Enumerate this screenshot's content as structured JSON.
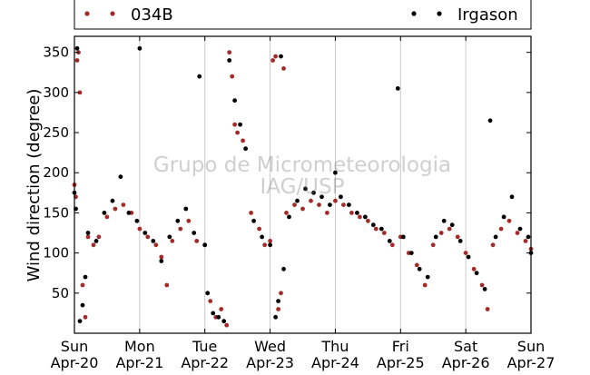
{
  "chart_data": {
    "type": "scatter",
    "ylabel": "Wind direction (degree)",
    "ylim": [
      0,
      370
    ],
    "yticks": [
      50,
      100,
      150,
      200,
      250,
      300,
      350
    ],
    "xlim": [
      "2014-04-20T00:00",
      "2014-04-27T00:00"
    ],
    "xticks": [
      {
        "x": "2014-04-20T00:00",
        "day": "Sun",
        "date": "Apr-20"
      },
      {
        "x": "2014-04-21T00:00",
        "day": "Mon",
        "date": "Apr-21"
      },
      {
        "x": "2014-04-22T00:00",
        "day": "Tue",
        "date": "Apr-22"
      },
      {
        "x": "2014-04-23T00:00",
        "day": "Wed",
        "date": "Apr-23"
      },
      {
        "x": "2014-04-24T00:00",
        "day": "Thu",
        "date": "Apr-24"
      },
      {
        "x": "2014-04-25T00:00",
        "day": "Fri",
        "date": "Apr-25"
      },
      {
        "x": "2014-04-26T00:00",
        "day": "Sat",
        "date": "Apr-26"
      },
      {
        "x": "2014-04-27T00:00",
        "day": "Sun",
        "date": "Apr-27"
      }
    ],
    "grid": "vertical",
    "legend": "top",
    "watermark": [
      "Grupo de Micrometeorologia",
      "IAG/USP"
    ],
    "series": [
      {
        "name": "034B",
        "color": "#a52a2a",
        "points": [
          [
            "2014-04-20T00:00",
            185
          ],
          [
            "2014-04-20T00:30",
            170
          ],
          [
            "2014-04-20T01:00",
            340
          ],
          [
            "2014-04-20T01:30",
            350
          ],
          [
            "2014-04-20T02:00",
            300
          ],
          [
            "2014-04-20T03:00",
            60
          ],
          [
            "2014-04-20T04:00",
            20
          ],
          [
            "2014-04-20T05:00",
            120
          ],
          [
            "2014-04-20T07:00",
            110
          ],
          [
            "2014-04-20T09:00",
            120
          ],
          [
            "2014-04-20T12:00",
            145
          ],
          [
            "2014-04-20T15:00",
            155
          ],
          [
            "2014-04-20T18:00",
            160
          ],
          [
            "2014-04-20T21:00",
            150
          ],
          [
            "2014-04-21T00:00",
            130
          ],
          [
            "2014-04-21T03:00",
            120
          ],
          [
            "2014-04-21T06:00",
            110
          ],
          [
            "2014-04-21T08:00",
            95
          ],
          [
            "2014-04-21T10:00",
            60
          ],
          [
            "2014-04-21T12:00",
            115
          ],
          [
            "2014-04-21T15:00",
            130
          ],
          [
            "2014-04-21T18:00",
            140
          ],
          [
            "2014-04-21T21:00",
            115
          ],
          [
            "2014-04-22T00:00",
            110
          ],
          [
            "2014-04-22T02:00",
            40
          ],
          [
            "2014-04-22T04:00",
            20
          ],
          [
            "2014-04-22T06:00",
            30
          ],
          [
            "2014-04-22T08:00",
            10
          ],
          [
            "2014-04-22T09:00",
            350
          ],
          [
            "2014-04-22T10:00",
            320
          ],
          [
            "2014-04-22T11:00",
            260
          ],
          [
            "2014-04-22T12:00",
            250
          ],
          [
            "2014-04-22T14:00",
            240
          ],
          [
            "2014-04-22T17:00",
            150
          ],
          [
            "2014-04-22T20:00",
            130
          ],
          [
            "2014-04-22T22:00",
            110
          ],
          [
            "2014-04-23T00:00",
            115
          ],
          [
            "2014-04-23T01:00",
            340
          ],
          [
            "2014-04-23T02:00",
            345
          ],
          [
            "2014-04-23T03:00",
            30
          ],
          [
            "2014-04-23T04:00",
            50
          ],
          [
            "2014-04-23T05:00",
            330
          ],
          [
            "2014-04-23T06:00",
            150
          ],
          [
            "2014-04-23T09:00",
            160
          ],
          [
            "2014-04-23T12:00",
            155
          ],
          [
            "2014-04-23T15:00",
            165
          ],
          [
            "2014-04-23T18:00",
            160
          ],
          [
            "2014-04-23T21:00",
            150
          ],
          [
            "2014-04-24T00:00",
            165
          ],
          [
            "2014-04-24T03:00",
            160
          ],
          [
            "2014-04-24T06:00",
            150
          ],
          [
            "2014-04-24T09:00",
            145
          ],
          [
            "2014-04-24T12:00",
            140
          ],
          [
            "2014-04-24T15:00",
            130
          ],
          [
            "2014-04-24T18:00",
            125
          ],
          [
            "2014-04-24T21:00",
            110
          ],
          [
            "2014-04-25T00:00",
            120
          ],
          [
            "2014-04-25T03:00",
            100
          ],
          [
            "2014-04-25T06:00",
            85
          ],
          [
            "2014-04-25T09:00",
            60
          ],
          [
            "2014-04-25T12:00",
            110
          ],
          [
            "2014-04-25T15:00",
            125
          ],
          [
            "2014-04-25T18:00",
            130
          ],
          [
            "2014-04-25T21:00",
            120
          ],
          [
            "2014-04-26T00:00",
            100
          ],
          [
            "2014-04-26T03:00",
            80
          ],
          [
            "2014-04-26T06:00",
            60
          ],
          [
            "2014-04-26T08:00",
            30
          ],
          [
            "2014-04-26T10:00",
            110
          ],
          [
            "2014-04-26T13:00",
            130
          ],
          [
            "2014-04-26T16:00",
            140
          ],
          [
            "2014-04-26T19:00",
            125
          ],
          [
            "2014-04-26T22:00",
            115
          ],
          [
            "2014-04-27T00:00",
            105
          ]
        ]
      },
      {
        "name": "Irgason",
        "color": "#000000",
        "points": [
          [
            "2014-04-20T00:00",
            175
          ],
          [
            "2014-04-20T00:30",
            155
          ],
          [
            "2014-04-20T01:00",
            355
          ],
          [
            "2014-04-20T02:00",
            15
          ],
          [
            "2014-04-20T03:00",
            35
          ],
          [
            "2014-04-20T04:00",
            70
          ],
          [
            "2014-04-20T05:00",
            125
          ],
          [
            "2014-04-20T08:00",
            115
          ],
          [
            "2014-04-20T11:00",
            150
          ],
          [
            "2014-04-20T14:00",
            165
          ],
          [
            "2014-04-20T17:00",
            195
          ],
          [
            "2014-04-20T20:00",
            150
          ],
          [
            "2014-04-20T23:00",
            140
          ],
          [
            "2014-04-21T00:00",
            355
          ],
          [
            "2014-04-21T02:00",
            125
          ],
          [
            "2014-04-21T05:00",
            115
          ],
          [
            "2014-04-21T08:00",
            90
          ],
          [
            "2014-04-21T11:00",
            120
          ],
          [
            "2014-04-21T14:00",
            140
          ],
          [
            "2014-04-21T17:00",
            155
          ],
          [
            "2014-04-21T20:00",
            125
          ],
          [
            "2014-04-21T22:00",
            320
          ],
          [
            "2014-04-22T00:00",
            110
          ],
          [
            "2014-04-22T01:00",
            50
          ],
          [
            "2014-04-22T03:00",
            25
          ],
          [
            "2014-04-22T05:00",
            20
          ],
          [
            "2014-04-22T07:00",
            15
          ],
          [
            "2014-04-22T09:00",
            340
          ],
          [
            "2014-04-22T11:00",
            290
          ],
          [
            "2014-04-22T13:00",
            260
          ],
          [
            "2014-04-22T15:00",
            230
          ],
          [
            "2014-04-22T18:00",
            140
          ],
          [
            "2014-04-22T21:00",
            120
          ],
          [
            "2014-04-23T00:00",
            110
          ],
          [
            "2014-04-23T02:00",
            20
          ],
          [
            "2014-04-23T03:00",
            40
          ],
          [
            "2014-04-23T04:00",
            345
          ],
          [
            "2014-04-23T05:00",
            80
          ],
          [
            "2014-04-23T07:00",
            145
          ],
          [
            "2014-04-23T10:00",
            165
          ],
          [
            "2014-04-23T13:00",
            180
          ],
          [
            "2014-04-23T16:00",
            175
          ],
          [
            "2014-04-23T19:00",
            170
          ],
          [
            "2014-04-23T22:00",
            160
          ],
          [
            "2014-04-24T00:00",
            200
          ],
          [
            "2014-04-24T02:00",
            170
          ],
          [
            "2014-04-24T05:00",
            160
          ],
          [
            "2014-04-24T08:00",
            150
          ],
          [
            "2014-04-24T11:00",
            145
          ],
          [
            "2014-04-24T14:00",
            135
          ],
          [
            "2014-04-24T17:00",
            130
          ],
          [
            "2014-04-24T20:00",
            115
          ],
          [
            "2014-04-24T23:00",
            305
          ],
          [
            "2014-04-25T01:00",
            120
          ],
          [
            "2014-04-25T04:00",
            100
          ],
          [
            "2014-04-25T07:00",
            80
          ],
          [
            "2014-04-25T10:00",
            70
          ],
          [
            "2014-04-25T13:00",
            120
          ],
          [
            "2014-04-25T16:00",
            140
          ],
          [
            "2014-04-25T19:00",
            135
          ],
          [
            "2014-04-25T22:00",
            115
          ],
          [
            "2014-04-26T01:00",
            95
          ],
          [
            "2014-04-26T04:00",
            75
          ],
          [
            "2014-04-26T07:00",
            55
          ],
          [
            "2014-04-26T09:00",
            265
          ],
          [
            "2014-04-26T11:00",
            120
          ],
          [
            "2014-04-26T14:00",
            145
          ],
          [
            "2014-04-26T17:00",
            170
          ],
          [
            "2014-04-26T20:00",
            130
          ],
          [
            "2014-04-26T23:00",
            120
          ],
          [
            "2014-04-27T00:00",
            100
          ]
        ]
      }
    ]
  }
}
